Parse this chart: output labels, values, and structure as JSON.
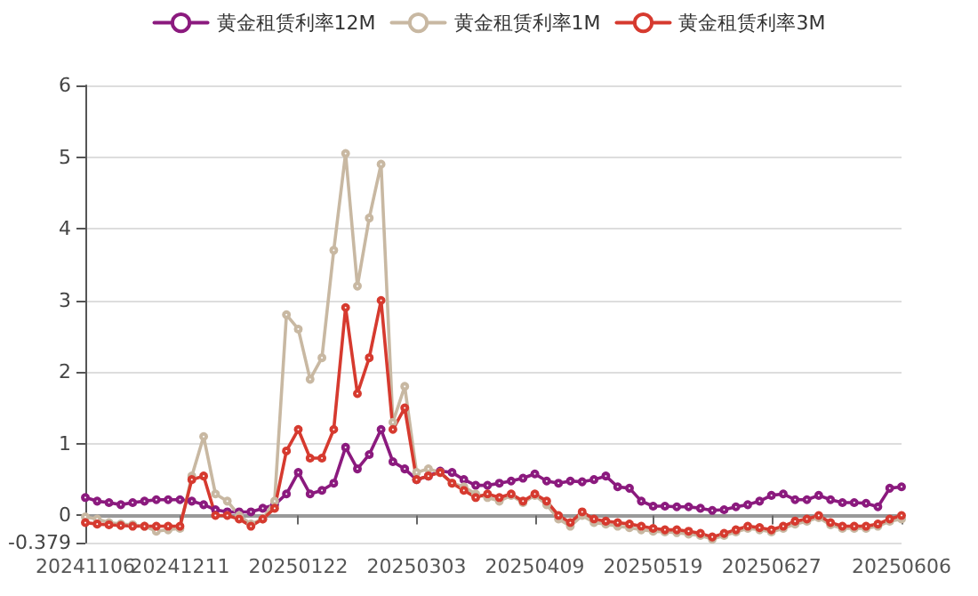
{
  "chart_data": {
    "type": "line",
    "categories": [
      "20241106",
      null,
      null,
      null,
      null,
      null,
      null,
      null,
      "20241211",
      null,
      null,
      null,
      null,
      null,
      null,
      null,
      null,
      null,
      "20250122",
      null,
      null,
      null,
      null,
      null,
      null,
      null,
      null,
      null,
      "20250303",
      null,
      null,
      null,
      null,
      null,
      null,
      null,
      null,
      null,
      "20250409",
      null,
      null,
      null,
      null,
      null,
      null,
      null,
      null,
      null,
      "20250519",
      null,
      null,
      null,
      null,
      null,
      null,
      null,
      null,
      null,
      "20250627",
      null,
      null,
      null,
      null,
      null,
      null,
      null,
      null,
      null,
      null,
      "20250606"
    ],
    "series": [
      {
        "name": "黄金租赁利率12M",
        "color": "#8b1a7e",
        "values": [
          0.25,
          0.2,
          0.18,
          0.15,
          0.18,
          0.2,
          0.22,
          0.22,
          0.22,
          0.2,
          0.15,
          0.08,
          0.05,
          0.05,
          0.05,
          0.1,
          0.15,
          0.3,
          0.6,
          0.3,
          0.35,
          0.45,
          0.95,
          0.65,
          0.85,
          1.2,
          0.75,
          0.65,
          0.5,
          0.55,
          0.62,
          0.6,
          0.5,
          0.42,
          0.42,
          0.45,
          0.48,
          0.52,
          0.58,
          0.48,
          0.45,
          0.48,
          0.47,
          0.5,
          0.55,
          0.4,
          0.38,
          0.2,
          0.13,
          0.13,
          0.12,
          0.12,
          0.1,
          0.07,
          0.08,
          0.12,
          0.15,
          0.2,
          0.28,
          0.3,
          0.22,
          0.22,
          0.28,
          0.22,
          0.18,
          0.18,
          0.17,
          0.12,
          0.38,
          0.4
        ]
      },
      {
        "name": "黄金租赁利率1M",
        "color": "#c8b8a2",
        "values": [
          -0.02,
          -0.05,
          -0.1,
          -0.12,
          -0.13,
          -0.15,
          -0.22,
          -0.2,
          -0.18,
          0.55,
          1.1,
          0.3,
          0.2,
          0.0,
          -0.12,
          -0.05,
          0.2,
          2.8,
          2.6,
          1.9,
          2.2,
          3.7,
          5.05,
          3.2,
          4.15,
          4.9,
          1.3,
          1.8,
          0.6,
          0.65,
          0.6,
          0.45,
          0.4,
          0.3,
          0.25,
          0.2,
          0.28,
          0.18,
          0.28,
          0.15,
          -0.05,
          -0.15,
          0.0,
          -0.1,
          -0.12,
          -0.15,
          -0.17,
          -0.2,
          -0.22,
          -0.23,
          -0.24,
          -0.26,
          -0.28,
          -0.33,
          -0.28,
          -0.23,
          -0.18,
          -0.2,
          -0.23,
          -0.18,
          -0.12,
          -0.08,
          -0.03,
          -0.13,
          -0.18,
          -0.18,
          -0.18,
          -0.15,
          -0.08,
          -0.05
        ]
      },
      {
        "name": "黄金租赁利率3M",
        "color": "#d63a2f",
        "values": [
          -0.1,
          -0.12,
          -0.13,
          -0.14,
          -0.15,
          -0.15,
          -0.15,
          -0.15,
          -0.15,
          0.5,
          0.55,
          0.0,
          0.0,
          -0.05,
          -0.15,
          -0.05,
          0.1,
          0.9,
          1.2,
          0.8,
          0.8,
          1.2,
          2.9,
          1.7,
          2.2,
          3.0,
          1.2,
          1.5,
          0.5,
          0.55,
          0.6,
          0.45,
          0.35,
          0.25,
          0.3,
          0.25,
          0.3,
          0.2,
          0.3,
          0.2,
          0.0,
          -0.1,
          0.05,
          -0.05,
          -0.08,
          -0.1,
          -0.12,
          -0.15,
          -0.18,
          -0.2,
          -0.2,
          -0.22,
          -0.25,
          -0.3,
          -0.25,
          -0.2,
          -0.15,
          -0.17,
          -0.2,
          -0.15,
          -0.08,
          -0.05,
          0.0,
          -0.1,
          -0.15,
          -0.15,
          -0.15,
          -0.12,
          -0.05,
          0.0
        ]
      }
    ],
    "ylim": [
      -0.379,
      6
    ],
    "yticks": [
      -0.379,
      0,
      1,
      2,
      3,
      4,
      5,
      6
    ],
    "grid": "y",
    "legend": "top",
    "marker": "circle",
    "line_style": "solid"
  }
}
